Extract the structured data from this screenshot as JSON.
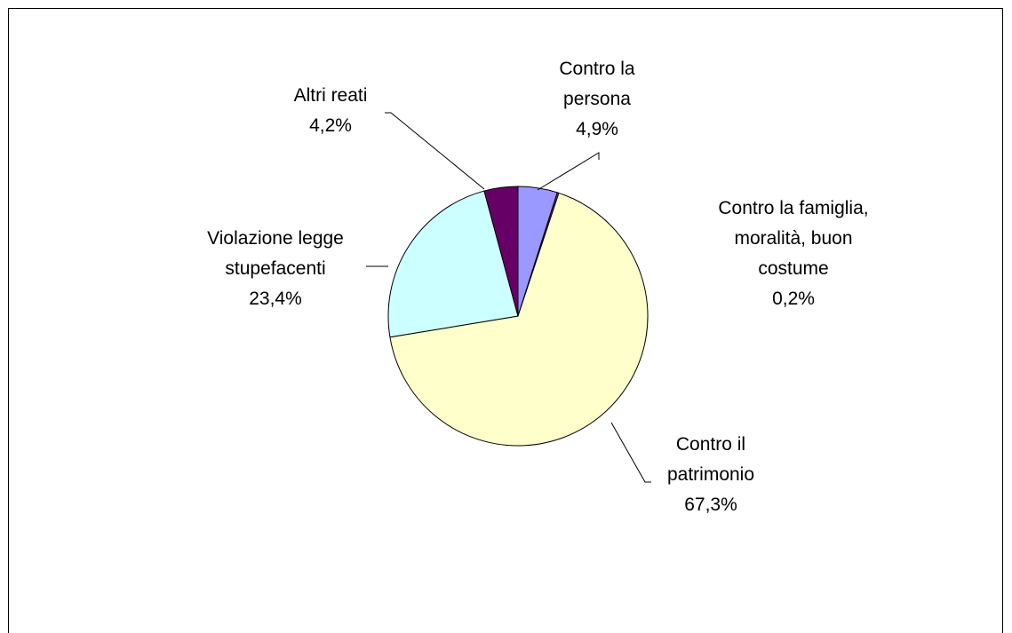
{
  "chart_data": {
    "type": "pie",
    "categories": [
      "Contro la persona",
      "Contro la famiglia, moralità, buon costume",
      "Contro il patrimonio",
      "Violazione legge stupefacenti",
      "Altri reati"
    ],
    "values": [
      4.9,
      0.2,
      67.3,
      23.4,
      4.2
    ],
    "value_labels": [
      "4,9%",
      "0,2%",
      "67,3%",
      "23,4%",
      "4,2%"
    ],
    "colors": [
      "#9999ff",
      "#993366",
      "#ffffcc",
      "#ccffff",
      "#660066"
    ]
  }
}
